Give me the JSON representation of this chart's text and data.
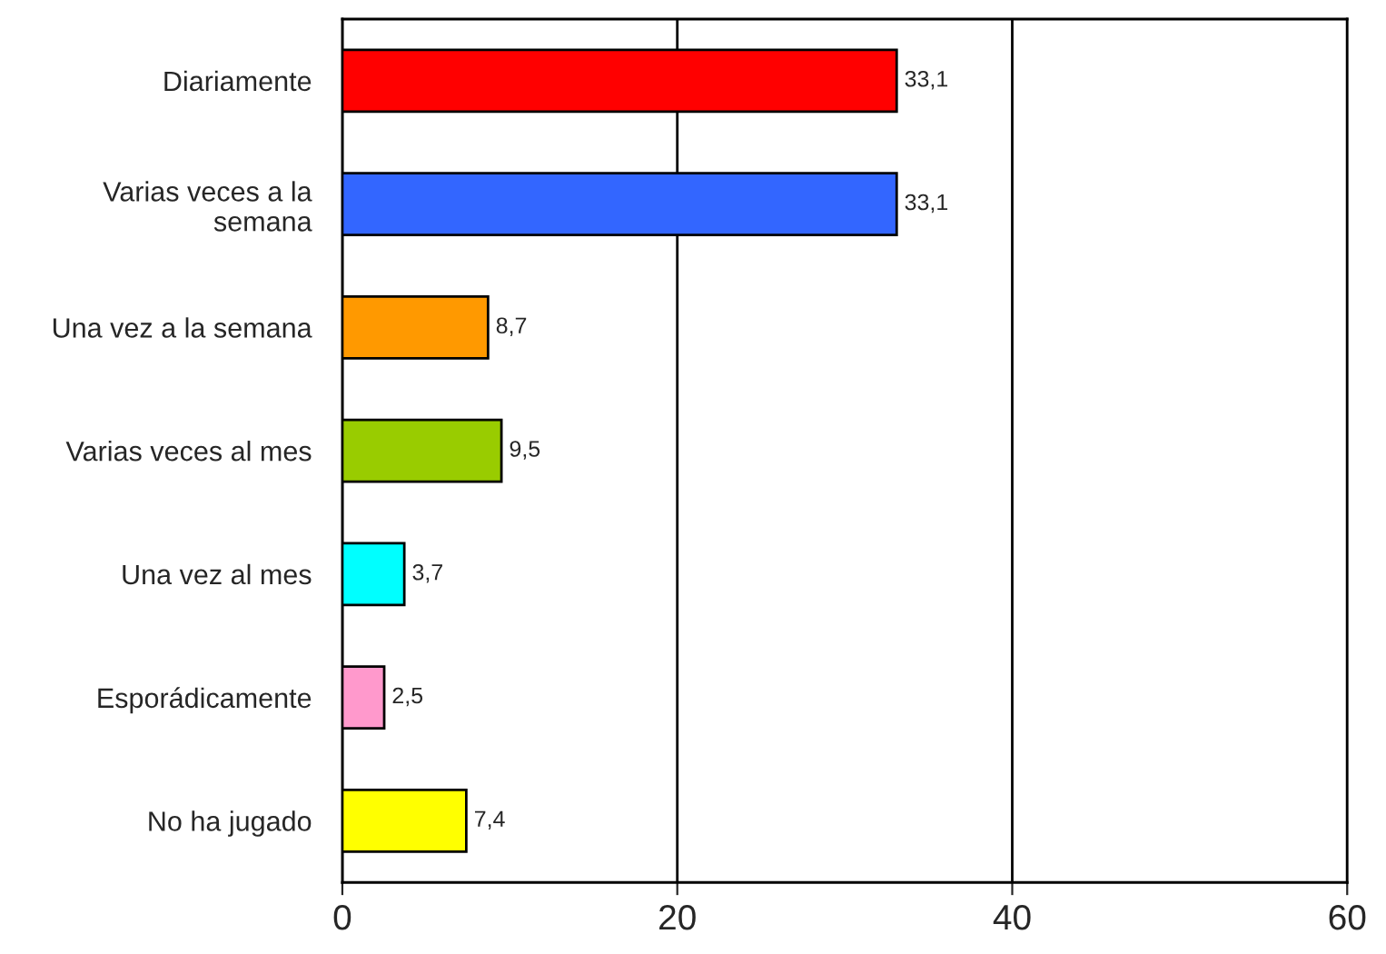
{
  "chart_data": {
    "type": "bar",
    "orientation": "horizontal",
    "categories": [
      "Diariamente",
      "Varias veces a la\nsemana",
      "Una vez a la semana",
      "Varias veces al mes",
      "Una vez al mes",
      "Esporádicamente",
      "No ha jugado"
    ],
    "values": [
      33.1,
      33.1,
      8.7,
      9.5,
      3.7,
      2.5,
      7.4
    ],
    "value_labels": [
      "33,1",
      "33,1",
      "8,7",
      "9,5",
      "3,7",
      "2,5",
      "7,4"
    ],
    "colors": [
      "#ff0000",
      "#3366ff",
      "#ff9900",
      "#99cc00",
      "#00ffff",
      "#ff99cc",
      "#ffff00"
    ],
    "xlim": [
      0,
      60
    ],
    "xticks": [
      0,
      20,
      40,
      60
    ],
    "grid": "x",
    "legend": false
  }
}
